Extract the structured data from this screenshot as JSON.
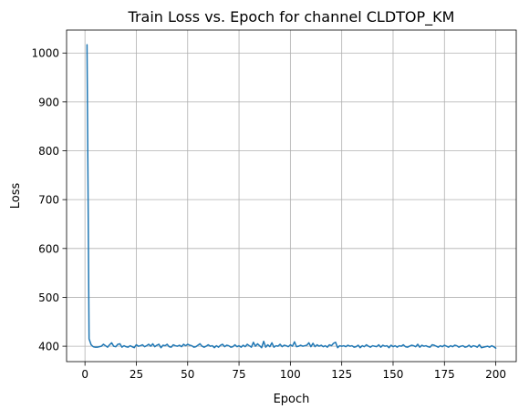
{
  "chart_data": {
    "type": "line",
    "title": "Train Loss vs. Epoch for channel CLDTOP_KM",
    "xlabel": "Epoch",
    "ylabel": "Loss",
    "xlim": [
      -8.95,
      209.95
    ],
    "ylim": [
      368.5,
      1047
    ],
    "xticks": [
      0,
      25,
      50,
      75,
      100,
      125,
      150,
      175,
      200
    ],
    "yticks": [
      400,
      500,
      600,
      700,
      800,
      900,
      1000
    ],
    "grid": true,
    "colors": {
      "line": "#1f77b4",
      "grid": "#b0b0b0"
    },
    "series": [
      {
        "x": [
          1,
          2,
          3,
          4,
          5,
          6,
          7,
          8,
          9,
          10,
          11,
          12,
          13,
          14,
          15,
          16,
          17,
          18,
          19,
          20,
          21,
          22,
          23,
          24,
          25,
          26,
          27,
          28,
          29,
          30,
          31,
          32,
          33,
          34,
          35,
          36,
          37,
          38,
          39,
          40,
          41,
          42,
          43,
          44,
          45,
          46,
          47,
          48,
          49,
          50,
          51,
          52,
          53,
          54,
          55,
          56,
          57,
          58,
          59,
          60,
          61,
          62,
          63,
          64,
          65,
          66,
          67,
          68,
          69,
          70,
          71,
          72,
          73,
          74,
          75,
          76,
          77,
          78,
          79,
          80,
          81,
          82,
          83,
          84,
          85,
          86,
          87,
          88,
          89,
          90,
          91,
          92,
          93,
          94,
          95,
          96,
          97,
          98,
          99,
          100,
          101,
          102,
          103,
          104,
          105,
          106,
          107,
          108,
          109,
          110,
          111,
          112,
          113,
          114,
          115,
          116,
          117,
          118,
          119,
          120,
          121,
          122,
          123,
          124,
          125,
          126,
          127,
          128,
          129,
          130,
          131,
          132,
          133,
          134,
          135,
          136,
          137,
          138,
          139,
          140,
          141,
          142,
          143,
          144,
          145,
          146,
          147,
          148,
          149,
          150,
          151,
          152,
          153,
          154,
          155,
          156,
          157,
          158,
          159,
          160,
          161,
          162,
          163,
          164,
          165,
          166,
          167,
          168,
          169,
          170,
          171,
          172,
          173,
          174,
          175,
          176,
          177,
          178,
          179,
          180,
          181,
          182,
          183,
          184,
          185,
          186,
          187,
          188,
          189,
          190,
          191,
          192,
          193,
          194,
          195,
          196,
          197,
          198,
          199,
          200
        ],
        "values": [
          1017,
          415,
          403,
          399,
          398,
          398,
          399,
          400,
          404,
          401,
          398,
          403,
          407,
          400,
          399,
          404,
          405,
          398,
          401,
          399,
          398,
          401,
          399,
          397,
          403,
          400,
          401,
          403,
          399,
          401,
          404,
          400,
          405,
          399,
          402,
          404,
          397,
          402,
          401,
          404,
          399,
          398,
          403,
          401,
          400,
          402,
          399,
          404,
          401,
          404,
          402,
          401,
          398,
          399,
          402,
          405,
          400,
          398,
          400,
          403,
          400,
          401,
          397,
          401,
          398,
          402,
          404,
          399,
          402,
          401,
          398,
          399,
          403,
          399,
          401,
          398,
          402,
          399,
          404,
          401,
          398,
          408,
          400,
          405,
          401,
          397,
          410,
          398,
          403,
          399,
          407,
          398,
          401,
          400,
          404,
          399,
          402,
          401,
          399,
          403,
          400,
          409,
          399,
          400,
          402,
          400,
          401,
          402,
          407,
          399,
          406,
          399,
          403,
          400,
          402,
          399,
          401,
          398,
          403,
          401,
          406,
          408,
          397,
          401,
          400,
          401,
          399,
          402,
          400,
          401,
          398,
          399,
          402,
          397,
          401,
          399,
          403,
          400,
          398,
          401,
          400,
          399,
          403,
          398,
          402,
          400,
          401,
          397,
          402,
          399,
          401,
          398,
          401,
          400,
          403,
          399,
          398,
          400,
          402,
          401,
          399,
          404,
          398,
          402,
          400,
          401,
          399,
          398,
          403,
          402,
          400,
          398,
          401,
          399,
          402,
          400,
          398,
          401,
          399,
          402,
          401,
          398,
          400,
          401,
          398,
          399,
          402,
          398,
          401,
          400,
          398,
          403,
          397,
          398,
          399,
          400,
          398,
          401,
          399,
          396
        ]
      }
    ]
  }
}
